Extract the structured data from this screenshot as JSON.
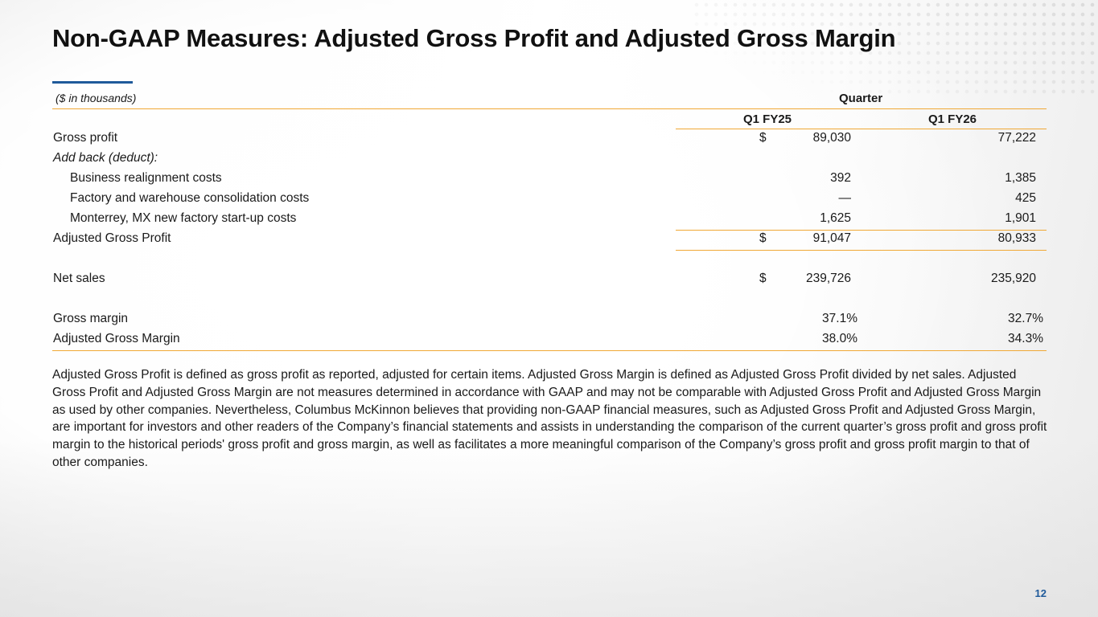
{
  "slide": {
    "title": "Non-GAAP Measures: Adjusted Gross Profit and Adjusted Gross Margin",
    "page_number": "12",
    "accent_color": "#1f5a9a",
    "rule_color": "#f0a835"
  },
  "table": {
    "units_label": "($ in thousands)",
    "group_header": "Quarter",
    "columns": [
      "Q1 FY25",
      "Q1 FY26"
    ],
    "rows": {
      "gross_profit": {
        "label": "Gross profit",
        "currency": "$",
        "q1fy25": "89,030",
        "q1fy26": "77,222"
      },
      "add_back": {
        "label": "Add back (deduct):"
      },
      "business_realignment": {
        "label": "Business realignment costs",
        "q1fy25": "392",
        "q1fy26": "1,385"
      },
      "factory_consolidation": {
        "label": "Factory and warehouse consolidation costs",
        "q1fy25": "—",
        "q1fy26": "425"
      },
      "monterrey_startup": {
        "label": "Monterrey, MX new factory start-up costs",
        "q1fy25": "1,625",
        "q1fy26": "1,901"
      },
      "adjusted_gross_profit": {
        "label": "Adjusted Gross Profit",
        "currency": "$",
        "q1fy25": "91,047",
        "q1fy26": "80,933"
      },
      "net_sales": {
        "label": "Net sales",
        "currency": "$",
        "q1fy25": "239,726",
        "q1fy26": "235,920"
      },
      "gross_margin": {
        "label": "Gross margin",
        "q1fy25": "37.1%",
        "q1fy26": "32.7%"
      },
      "adjusted_gross_margin": {
        "label": "Adjusted Gross Margin",
        "q1fy25": "38.0%",
        "q1fy26": "34.3%"
      }
    }
  },
  "description": "Adjusted Gross Profit is defined as gross profit as reported, adjusted for certain items.  Adjusted Gross Margin is defined as Adjusted Gross Profit divided by net sales.  Adjusted Gross Profit and Adjusted Gross Margin are not measures determined in accordance with GAAP and may not be comparable with Adjusted Gross Profit and Adjusted Gross Margin as used by other companies.  Nevertheless, Columbus McKinnon believes that providing non-GAAP financial measures, such as Adjusted Gross Profit and Adjusted Gross Margin, are important for investors and other readers of the Company’s financial statements and assists in understanding the comparison of the current quarter’s gross profit and gross profit margin to the historical periods' gross profit and gross margin, as well as facilitates a more meaningful comparison of the Company’s gross profit and gross profit margin to that of other companies."
}
